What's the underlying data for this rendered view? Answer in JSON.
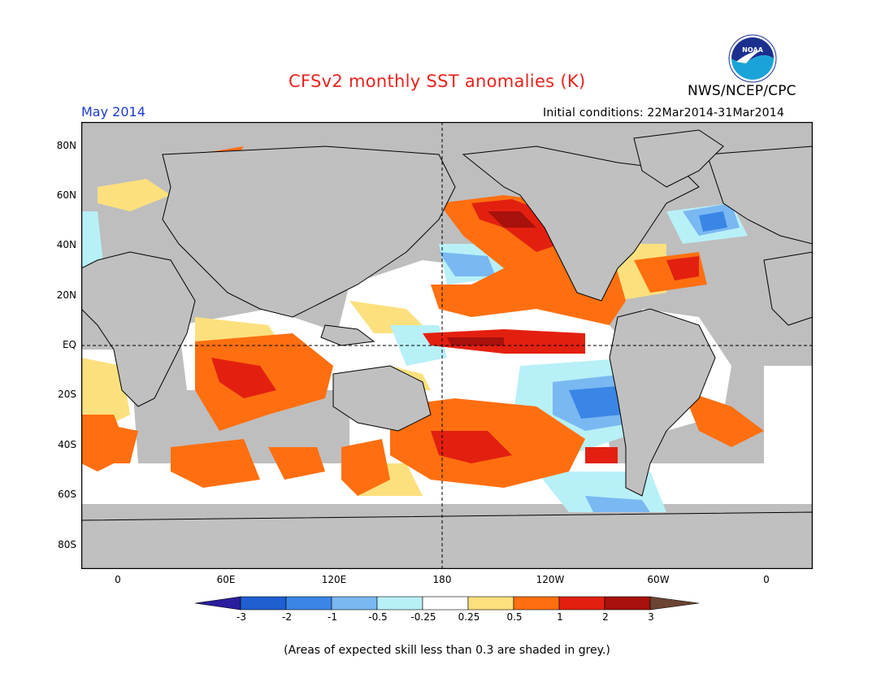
{
  "title": "CFSv2 monthly SST anomalies (K)",
  "period": "May 2014",
  "initial_conditions": "Initial conditions: 22Mar2014-31Mar2014",
  "agency": "NWS/NCEP/CPC",
  "logo_text": "NOAA",
  "footnote": "(Areas of expected skill less than 0.3 are shaded in grey.)",
  "axes": {
    "lat_labels": [
      "80N",
      "60N",
      "40N",
      "20N",
      "EQ",
      "20S",
      "40S",
      "60S",
      "80S"
    ],
    "lon_labels": [
      "0",
      "60E",
      "120E",
      "180",
      "120W",
      "60W",
      "0"
    ]
  },
  "colorbar": {
    "labels": [
      "-3",
      "-2",
      "-1",
      "-0.5",
      "-0.25",
      "0.25",
      "0.5",
      "1",
      "2",
      "3"
    ],
    "colors": [
      "#2a1e9c",
      "#1f5fd1",
      "#3a86e6",
      "#7ab8f2",
      "#b8f0f8",
      "#ffffff",
      "#fde07e",
      "#ff6f10",
      "#e32010",
      "#a8110c",
      "#6b4433"
    ]
  },
  "map_colors": {
    "ocean_grey": "#bebebe",
    "land": "#c0c0c0",
    "coast": "#000000"
  }
}
